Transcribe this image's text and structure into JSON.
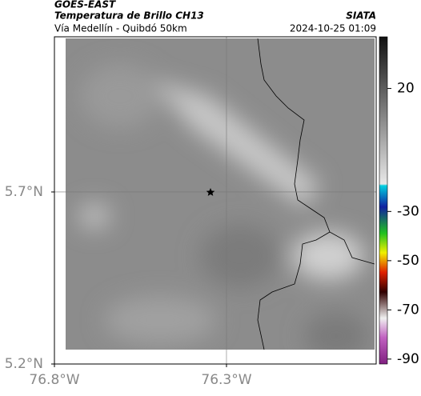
{
  "header": {
    "satellite": "GOES-EAST",
    "title": "Temperatura de Brillo CH13",
    "source": "SIATA",
    "subtitle": "Vía Medellín - Quibdó 50km",
    "datetime": "2024-10-25 01:09"
  },
  "map": {
    "xlim": [
      -76.8,
      -75.865
    ],
    "ylim": [
      5.2,
      6.151
    ],
    "xticks": [
      {
        "value": -76.8,
        "label": "76.8°W"
      },
      {
        "value": -76.3,
        "label": "76.3°W"
      }
    ],
    "yticks": [
      {
        "value": 5.2,
        "label": "5.2°N"
      },
      {
        "value": 5.7,
        "label": "5.7°N"
      }
    ],
    "grid": true
  },
  "colorbar": {
    "lim": [
      -92,
      41
    ],
    "ticks": [
      20,
      -30,
      -50,
      -70,
      -90
    ]
  }
}
